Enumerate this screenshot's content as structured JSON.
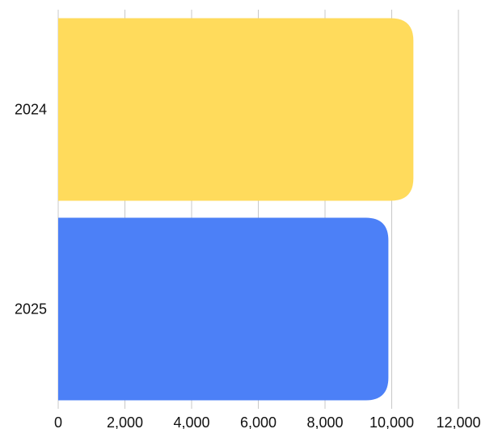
{
  "chart_data": {
    "type": "bar",
    "orientation": "horizontal",
    "categories": [
      "2024",
      "2025"
    ],
    "values": [
      10650,
      9900
    ],
    "bar_colors": [
      "#FFDB5C",
      "#4C80F7"
    ],
    "xlim": [
      0,
      12000
    ],
    "x_ticks": [
      0,
      2000,
      4000,
      6000,
      8000,
      10000,
      12000
    ],
    "x_tick_labels": [
      "0",
      "2,000",
      "4,000",
      "6,000",
      "8,000",
      "10,000",
      "12,000"
    ],
    "grid": true,
    "legend": "none",
    "title": "",
    "xlabel": "",
    "ylabel": ""
  }
}
